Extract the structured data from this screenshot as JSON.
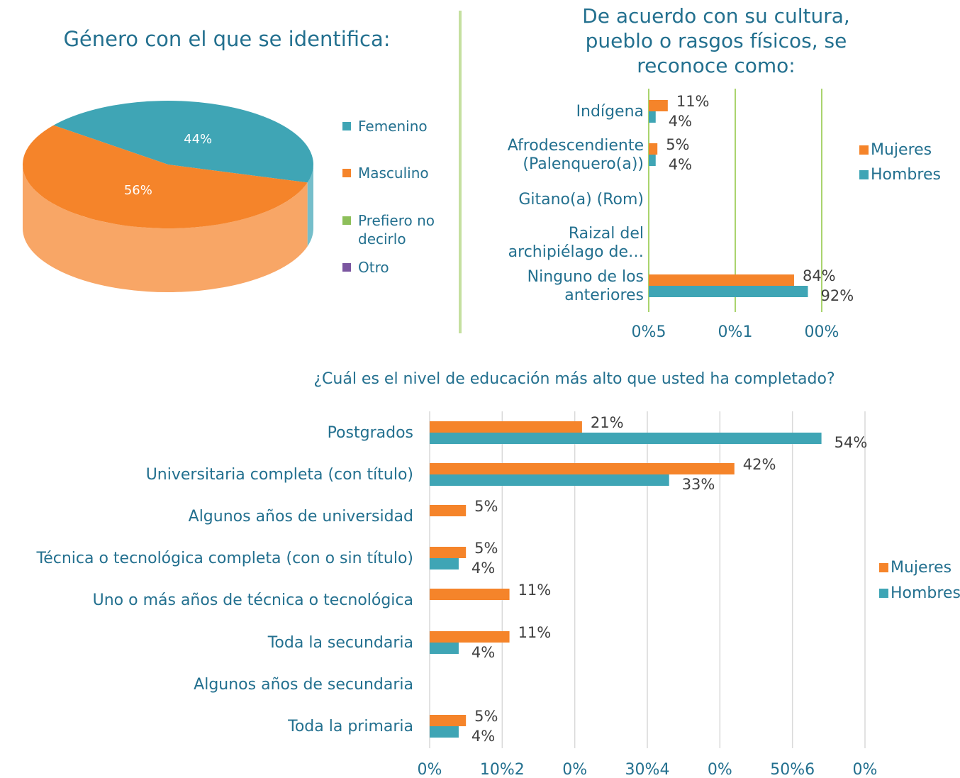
{
  "chart_data": [
    {
      "type": "pie",
      "title": "Género con el que se identifica:",
      "categories": [
        "Femenino",
        "Masculino",
        "Prefiero no\ndecirlo",
        "Otro"
      ],
      "values": [
        44,
        56,
        0,
        0
      ],
      "value_labels": [
        "44%",
        "56%",
        null,
        null
      ],
      "colors": [
        "#3fa5b5",
        "#f5842a",
        "#8dbf5a",
        "#7b56a0"
      ]
    },
    {
      "type": "bar",
      "horizontal": true,
      "title": "De acuerdo con su cultura,\npueblo o rasgos físicos, se\nreconoce como:",
      "categories": [
        "Indígena",
        "Afrodescendiente\n(Palenquero(a))",
        "Gitano(a) (Rom)",
        "Raizal del\narchipiélago de…",
        "Ninguno de los\nanteriores"
      ],
      "series": [
        {
          "name": "Mujeres",
          "color": "#f5842a",
          "values": [
            11,
            5,
            null,
            null,
            84
          ],
          "value_labels": [
            "11%",
            "5%",
            null,
            null,
            "84%"
          ]
        },
        {
          "name": "Hombres",
          "color": "#3fa5b5",
          "values": [
            4,
            4,
            null,
            null,
            92
          ],
          "value_labels": [
            "4%",
            "4%",
            null,
            null,
            "92%"
          ]
        }
      ],
      "xlim": [
        0,
        100
      ],
      "xticks": [
        {
          "value": 0,
          "label": "0%5"
        },
        {
          "value": 50,
          "label": "0%1"
        },
        {
          "value": 100,
          "label": "00%"
        }
      ],
      "grid": true,
      "grid_color": "#8dc63f",
      "legend": "right"
    },
    {
      "type": "bar",
      "horizontal": true,
      "title": "¿Cuál es el nivel de educación más alto que usted ha completado?",
      "categories": [
        "Postgrados",
        "Universitaria completa (con título)",
        "Algunos años de universidad",
        "Técnica o tecnológica completa (con o sin título)",
        "Uno o más años de técnica o tecnológica",
        "Toda la secundaria",
        "Algunos años de secundaria",
        "Toda la primaria"
      ],
      "series": [
        {
          "name": "Mujeres",
          "color": "#f5842a",
          "values": [
            21,
            42,
            5,
            5,
            11,
            11,
            null,
            5
          ],
          "value_labels": [
            "21%",
            "42%",
            "5%",
            "5%",
            "11%",
            "11%",
            null,
            "5%"
          ]
        },
        {
          "name": "Hombres",
          "color": "#3fa5b5",
          "values": [
            54,
            33,
            null,
            4,
            null,
            4,
            null,
            4
          ],
          "value_labels": [
            "54%",
            "33%",
            null,
            "4%",
            null,
            "4%",
            null,
            "4%"
          ]
        }
      ],
      "xlim": [
        0,
        60
      ],
      "xticks": [
        {
          "value": 0,
          "label": "0%"
        },
        {
          "value": 10,
          "label": "10%2"
        },
        {
          "value": 20,
          "label": "0%"
        },
        {
          "value": 30,
          "label": "30%4"
        },
        {
          "value": 40,
          "label": "0%"
        },
        {
          "value": 50,
          "label": "50%6"
        },
        {
          "value": 60,
          "label": "0%"
        }
      ],
      "grid": true,
      "grid_color": "#d9d9d9",
      "legend": "right"
    }
  ]
}
